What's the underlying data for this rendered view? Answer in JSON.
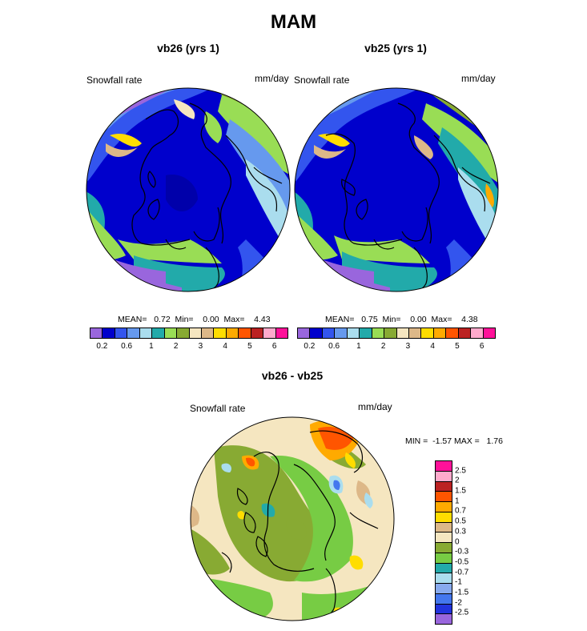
{
  "figure": {
    "title": "MAM"
  },
  "panel_left": {
    "title": "vb26 (yrs 1)",
    "variable": "Snowfall rate",
    "units": "mm/day",
    "stats": "MEAN=   0.72  Min=    0.00  Max=    4.43"
  },
  "panel_right": {
    "title": "vb25 (yrs 1)",
    "variable": "Snowfall rate",
    "units": "mm/day",
    "stats": "MEAN=   0.75  Min=    0.00  Max=    4.38"
  },
  "panel_diff": {
    "title": "vb26 - vb25",
    "variable": "Snowfall rate",
    "units": "mm/day",
    "stats": "MIN =  -1.57 MAX =   1.76"
  },
  "abs_colorbar": {
    "colors": [
      "#9966dd",
      "#0000cc",
      "#3355ee",
      "#6699ee",
      "#aaddee",
      "#22aaaa",
      "#99dd55",
      "#88aa33",
      "#f5e6c0",
      "#ddb888",
      "#ffdd00",
      "#ffaa00",
      "#ff5500",
      "#bb2222",
      "#ffaacc",
      "#ff1199"
    ],
    "labels": [
      "0.2",
      "0.6",
      "1",
      "2",
      "3",
      "4",
      "5",
      "6"
    ]
  },
  "diff_colorbar": {
    "colors": [
      "#9966dd",
      "#2233dd",
      "#4477ee",
      "#88aaee",
      "#aaddee",
      "#22aaaa",
      "#77cc44",
      "#88aa33",
      "#f5e6c0",
      "#ddb888",
      "#ffdd00",
      "#ffaa00",
      "#ff5500",
      "#bb2222",
      "#ffaacc",
      "#ff1199"
    ],
    "labels": [
      "-2.5",
      "-2",
      "-1.5",
      "-1",
      "-0.7",
      "-0.5",
      "-0.3",
      "0",
      "0.3",
      "0.5",
      "0.7",
      "1",
      "1.5",
      "2",
      "2.5"
    ]
  }
}
